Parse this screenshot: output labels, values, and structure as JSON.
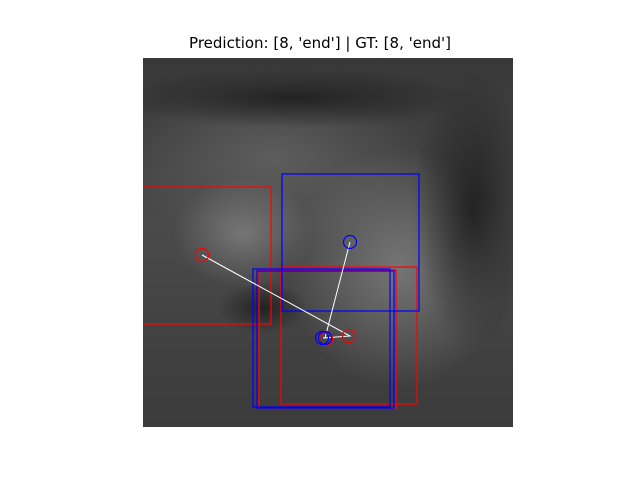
{
  "title": "Prediction: [8, 'end'] | GT: [8, 'end']",
  "colors": {
    "prediction": "#ff0000",
    "ground_truth": "#0000ff",
    "trajectory": "#ffffff",
    "background_top": "#3a3a3a",
    "background_mid": "#5a5a5a"
  },
  "legend_notes": {
    "prediction_color_name": "red",
    "ground_truth_color_name": "blue"
  }
}
